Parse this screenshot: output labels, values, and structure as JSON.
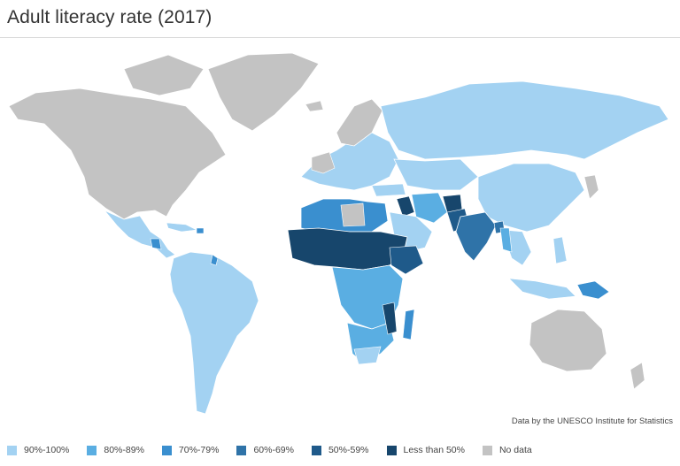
{
  "title": "Adult literacy rate (2017)",
  "source": "Data by the UNESCO Institute for Statistics",
  "colors": {
    "c90": "#a3d2f2",
    "c80": "#5aaee2",
    "c70": "#3a8fcf",
    "c60": "#2f73a8",
    "c50": "#1f5a8a",
    "cLess": "#17466c",
    "noData": "#c3c3c3"
  },
  "legend": [
    {
      "label": "90%-100%",
      "color": "#a3d2f2"
    },
    {
      "label": "80%-89%",
      "color": "#5aaee2"
    },
    {
      "label": "70%-79%",
      "color": "#3a8fcf"
    },
    {
      "label": "60%-69%",
      "color": "#2f73a8"
    },
    {
      "label": "50%-59%",
      "color": "#1f5a8a"
    },
    {
      "label": "Less than 50%",
      "color": "#17466c"
    },
    {
      "label": "No data",
      "color": "#c3c3c3"
    }
  ]
}
